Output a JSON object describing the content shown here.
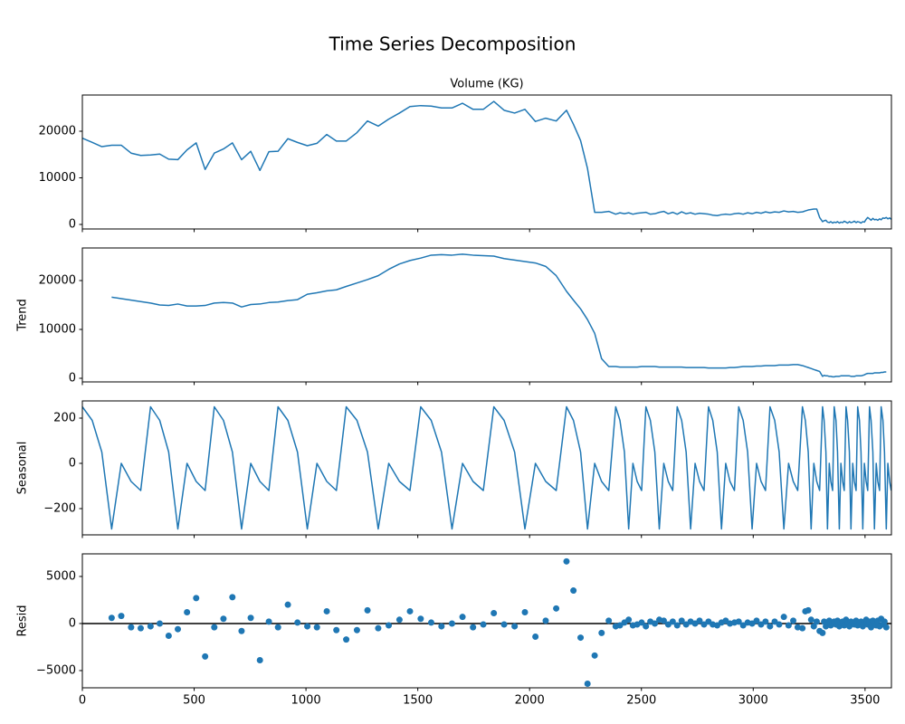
{
  "title": "Time Series Decomposition",
  "chart_data": [
    {
      "type": "line",
      "title": "Volume (KG)",
      "color": "#1f77b4",
      "xlim": [
        0,
        3618
      ],
      "xticks": [
        0,
        500,
        1000,
        1500,
        2000,
        2500,
        3000,
        3500
      ],
      "show_xtick_labels": false,
      "ylim": [
        -970,
        27770
      ],
      "yticks": [
        0,
        10000,
        20000
      ],
      "x": [
        0,
        44,
        87,
        131,
        174,
        218,
        261,
        305,
        346,
        386,
        427,
        468,
        509,
        549,
        590,
        631,
        671,
        712,
        753,
        794,
        834,
        875,
        919,
        962,
        1006,
        1049,
        1093,
        1136,
        1180,
        1228,
        1275,
        1323,
        1370,
        1418,
        1465,
        1513,
        1560,
        1606,
        1653,
        1700,
        1747,
        1793,
        1840,
        1886,
        1933,
        1979,
        2026,
        2072,
        2119,
        2165,
        2196,
        2228,
        2259,
        2291,
        2322,
        2354,
        2385,
        2404,
        2424,
        2443,
        2462,
        2481,
        2501,
        2520,
        2540,
        2560,
        2580,
        2600,
        2620,
        2640,
        2660,
        2680,
        2700,
        2720,
        2740,
        2760,
        2780,
        2800,
        2819,
        2839,
        2858,
        2877,
        2896,
        2916,
        2935,
        2955,
        2975,
        2995,
        3015,
        3035,
        3055,
        3075,
        3096,
        3116,
        3137,
        3158,
        3179,
        3199,
        3220,
        3233,
        3246,
        3259,
        3271,
        3284,
        3297,
        3310,
        3317,
        3325,
        3332,
        3340,
        3347,
        3355,
        3362,
        3370,
        3377,
        3385,
        3392,
        3400,
        3407,
        3415,
        3422,
        3430,
        3437,
        3445,
        3452,
        3460,
        3467,
        3475,
        3482,
        3490,
        3497,
        3505,
        3512,
        3520,
        3527,
        3535,
        3542,
        3550,
        3557,
        3565,
        3572,
        3580,
        3587,
        3595,
        3602,
        3610,
        3617
      ],
      "values": [
        18500,
        17600,
        16700,
        17000,
        17000,
        15300,
        14800,
        14900,
        15100,
        14000,
        13900,
        16000,
        17500,
        11800,
        15300,
        16200,
        17500,
        13900,
        15700,
        11600,
        15600,
        15700,
        18400,
        17600,
        16900,
        17400,
        19300,
        17900,
        17900,
        19700,
        22200,
        21100,
        22600,
        23900,
        25300,
        25500,
        25400,
        25000,
        25000,
        26000,
        24700,
        24700,
        26400,
        24500,
        23900,
        24700,
        22100,
        22800,
        22200,
        24500,
        21500,
        18000,
        12000,
        2600,
        2600,
        2800,
        2200,
        2500,
        2300,
        2500,
        2200,
        2400,
        2500,
        2600,
        2200,
        2300,
        2600,
        2800,
        2300,
        2600,
        2200,
        2700,
        2300,
        2500,
        2200,
        2400,
        2300,
        2200,
        2000,
        1900,
        2100,
        2200,
        2100,
        2300,
        2400,
        2200,
        2500,
        2300,
        2600,
        2400,
        2700,
        2500,
        2700,
        2600,
        2900,
        2700,
        2800,
        2600,
        2700,
        2900,
        3100,
        3200,
        3300,
        3300,
        1500,
        600,
        800,
        900,
        500,
        400,
        600,
        300,
        500,
        400,
        600,
        300,
        500,
        400,
        700,
        500,
        300,
        600,
        400,
        500,
        700,
        400,
        600,
        500,
        300,
        600,
        500,
        1100,
        1500,
        1200,
        900,
        1300,
        1000,
        1100,
        900,
        1200,
        1000,
        1400,
        1300,
        1500,
        1200,
        1400,
        1100
      ]
    },
    {
      "type": "line",
      "ylabel": "Trend",
      "color": "#1f77b4",
      "xlim": [
        0,
        3618
      ],
      "xticks": [
        0,
        500,
        1000,
        1500,
        2000,
        2500,
        3000,
        3500
      ],
      "show_xtick_labels": false,
      "ylim": [
        -740,
        26670
      ],
      "yticks": [
        0,
        10000,
        20000
      ],
      "x": [
        0,
        44,
        87,
        131,
        174,
        218,
        261,
        305,
        346,
        386,
        427,
        468,
        509,
        549,
        590,
        631,
        671,
        712,
        753,
        794,
        834,
        875,
        919,
        962,
        1006,
        1049,
        1093,
        1136,
        1180,
        1228,
        1275,
        1323,
        1370,
        1418,
        1465,
        1513,
        1560,
        1606,
        1653,
        1700,
        1747,
        1793,
        1840,
        1886,
        1933,
        1979,
        2026,
        2072,
        2119,
        2165,
        2196,
        2228,
        2259,
        2291,
        2322,
        2354,
        2385,
        2404,
        2424,
        2443,
        2462,
        2481,
        2501,
        2520,
        2540,
        2560,
        2580,
        2600,
        2620,
        2640,
        2660,
        2680,
        2700,
        2720,
        2740,
        2760,
        2780,
        2800,
        2819,
        2839,
        2858,
        2877,
        2896,
        2916,
        2935,
        2955,
        2975,
        2995,
        3015,
        3035,
        3055,
        3075,
        3096,
        3116,
        3137,
        3158,
        3179,
        3199,
        3220,
        3233,
        3246,
        3259,
        3271,
        3284,
        3297,
        3310,
        3317,
        3325,
        3332,
        3340,
        3347,
        3355,
        3362,
        3370,
        3377,
        3385,
        3392,
        3400,
        3407,
        3415,
        3422,
        3430,
        3437,
        3445,
        3452,
        3460,
        3467,
        3475,
        3482,
        3490,
        3497,
        3505,
        3512,
        3520,
        3527,
        3535,
        3542,
        3550,
        3557,
        3565,
        3572,
        3580,
        3587,
        3595,
        3602,
        3610,
        3617
      ],
      "values": [
        null,
        null,
        null,
        16600,
        16300,
        16000,
        15700,
        15400,
        15000,
        14900,
        15200,
        14800,
        14800,
        14900,
        15400,
        15500,
        15400,
        14600,
        15100,
        15200,
        15500,
        15600,
        15900,
        16100,
        17200,
        17500,
        17900,
        18100,
        18800,
        19500,
        20200,
        21000,
        22300,
        23400,
        24100,
        24600,
        25200,
        25300,
        25200,
        25400,
        25200,
        25100,
        25000,
        24500,
        24200,
        23900,
        23600,
        22900,
        21000,
        17800,
        16000,
        14200,
        12000,
        9200,
        4000,
        2400,
        2400,
        2300,
        2300,
        2300,
        2300,
        2300,
        2400,
        2400,
        2400,
        2400,
        2300,
        2300,
        2300,
        2300,
        2300,
        2300,
        2200,
        2200,
        2200,
        2200,
        2200,
        2100,
        2100,
        2100,
        2100,
        2100,
        2200,
        2200,
        2300,
        2400,
        2400,
        2400,
        2500,
        2500,
        2600,
        2600,
        2600,
        2700,
        2700,
        2700,
        2800,
        2800,
        2600,
        2400,
        2200,
        2000,
        1800,
        1600,
        1400,
        400,
        600,
        500,
        500,
        400,
        400,
        300,
        300,
        400,
        400,
        400,
        500,
        500,
        500,
        500,
        500,
        500,
        400,
        400,
        400,
        500,
        500,
        500,
        500,
        600,
        700,
        900,
        1000,
        1000,
        1000,
        1000,
        1100,
        1100,
        1100,
        1100,
        1200,
        1200,
        1300,
        1300,
        null,
        null,
        null
      ]
    },
    {
      "type": "line",
      "ylabel": "Seasonal",
      "color": "#1f77b4",
      "xlim": [
        0,
        3618
      ],
      "xticks": [
        0,
        500,
        1000,
        1500,
        2000,
        2500,
        3000,
        3500
      ],
      "show_xtick_labels": false,
      "ylim": [
        -316,
        276
      ],
      "yticks": [
        {
          "value": -200,
          "label": "−200"
        },
        0,
        200
      ],
      "x": [
        0,
        44,
        87,
        131,
        174,
        218,
        261,
        305,
        346,
        386,
        427,
        468,
        509,
        549,
        590,
        631,
        671,
        712,
        753,
        794,
        834,
        875,
        919,
        962,
        1006,
        1049,
        1093,
        1136,
        1180,
        1228,
        1275,
        1323,
        1370,
        1418,
        1465,
        1513,
        1560,
        1606,
        1653,
        1700,
        1747,
        1793,
        1840,
        1886,
        1933,
        1979,
        2026,
        2072,
        2119,
        2165,
        2196,
        2228,
        2259,
        2291,
        2322,
        2354,
        2385,
        2404,
        2424,
        2443,
        2462,
        2481,
        2501,
        2520,
        2540,
        2560,
        2580,
        2600,
        2620,
        2640,
        2660,
        2680,
        2700,
        2720,
        2740,
        2760,
        2780,
        2800,
        2819,
        2839,
        2858,
        2877,
        2896,
        2916,
        2935,
        2955,
        2975,
        2995,
        3015,
        3035,
        3055,
        3075,
        3096,
        3116,
        3137,
        3158,
        3179,
        3199,
        3220,
        3233,
        3246,
        3259,
        3271,
        3284,
        3297,
        3310,
        3317,
        3325,
        3332,
        3340,
        3347,
        3355,
        3362,
        3370,
        3377,
        3385,
        3392,
        3400,
        3407,
        3415,
        3422,
        3430,
        3437,
        3445,
        3452,
        3460,
        3467,
        3475,
        3482,
        3490,
        3497,
        3505,
        3512,
        3520,
        3527,
        3535,
        3542,
        3550,
        3557,
        3565,
        3572,
        3580,
        3587,
        3595,
        3602,
        3610,
        3617
      ],
      "values": [
        250,
        190,
        50,
        -290,
        0,
        -80,
        -120,
        250,
        190,
        50,
        -290,
        0,
        -80,
        -120,
        250,
        190,
        50,
        -290,
        0,
        -80,
        -120,
        250,
        190,
        50,
        -290,
        0,
        -80,
        -120,
        250,
        190,
        50,
        -290,
        0,
        -80,
        -120,
        250,
        190,
        50,
        -290,
        0,
        -80,
        -120,
        250,
        190,
        50,
        -290,
        0,
        -80,
        -120,
        250,
        190,
        50,
        -290,
        0,
        -80,
        -120,
        250,
        190,
        50,
        -290,
        0,
        -80,
        -120,
        250,
        190,
        50,
        -290,
        0,
        -80,
        -120,
        250,
        190,
        50,
        -290,
        0,
        -80,
        -120,
        250,
        190,
        50,
        -290,
        0,
        -80,
        -120,
        250,
        190,
        50,
        -290,
        0,
        -80,
        -120,
        250,
        190,
        50,
        -290,
        0,
        -80,
        -120,
        250,
        190,
        50,
        -290,
        0,
        -80,
        -120,
        250,
        190,
        50,
        -290,
        0,
        -80,
        -120,
        250,
        190,
        50,
        -290,
        0,
        -80,
        -120,
        250,
        190,
        50,
        -290,
        0,
        -80,
        -120,
        250,
        190,
        50,
        -290,
        0,
        -80,
        -120,
        250,
        190,
        50,
        -290,
        0,
        -80,
        -120,
        250,
        190,
        50,
        -290,
        0,
        -80,
        -120
      ]
    },
    {
      "type": "scatter",
      "ylabel": "Resid",
      "color": "#1f77b4",
      "axhline": 0,
      "xlim": [
        0,
        3618
      ],
      "xticks": [
        0,
        500,
        1000,
        1500,
        2000,
        2500,
        3000,
        3500
      ],
      "show_xtick_labels": true,
      "ylim": [
        -6830,
        7400
      ],
      "yticks": [
        {
          "value": -5000,
          "label": "−5000"
        },
        0,
        5000
      ],
      "x": [
        0,
        44,
        87,
        131,
        174,
        218,
        261,
        305,
        346,
        386,
        427,
        468,
        509,
        549,
        590,
        631,
        671,
        712,
        753,
        794,
        834,
        875,
        919,
        962,
        1006,
        1049,
        1093,
        1136,
        1180,
        1228,
        1275,
        1323,
        1370,
        1418,
        1465,
        1513,
        1560,
        1606,
        1653,
        1700,
        1747,
        1793,
        1840,
        1886,
        1933,
        1979,
        2026,
        2072,
        2119,
        2165,
        2196,
        2228,
        2259,
        2291,
        2322,
        2354,
        2385,
        2404,
        2424,
        2443,
        2462,
        2481,
        2501,
        2520,
        2540,
        2560,
        2580,
        2600,
        2620,
        2640,
        2660,
        2680,
        2700,
        2720,
        2740,
        2760,
        2780,
        2800,
        2819,
        2839,
        2858,
        2877,
        2896,
        2916,
        2935,
        2955,
        2975,
        2995,
        3015,
        3035,
        3055,
        3075,
        3096,
        3116,
        3137,
        3158,
        3179,
        3199,
        3220,
        3233,
        3246,
        3259,
        3271,
        3284,
        3297,
        3310,
        3317,
        3325,
        3332,
        3340,
        3347,
        3355,
        3362,
        3370,
        3377,
        3385,
        3392,
        3400,
        3407,
        3415,
        3422,
        3430,
        3437,
        3445,
        3452,
        3460,
        3467,
        3475,
        3482,
        3490,
        3497,
        3505,
        3512,
        3520,
        3527,
        3535,
        3542,
        3550,
        3557,
        3565,
        3572,
        3580,
        3587,
        3595,
        3602,
        3610,
        3617
      ],
      "values": [
        null,
        null,
        null,
        600,
        800,
        -400,
        -500,
        -300,
        0,
        -1300,
        -600,
        1200,
        2700,
        -3500,
        -400,
        500,
        2800,
        -800,
        600,
        -3900,
        200,
        -400,
        2000,
        100,
        -300,
        -400,
        1300,
        -700,
        -1700,
        -700,
        1400,
        -500,
        -200,
        400,
        1300,
        500,
        100,
        -300,
        0,
        700,
        -400,
        -100,
        1100,
        -100,
        -300,
        1200,
        -1400,
        300,
        1600,
        6600,
        3500,
        -1500,
        -6400,
        -3400,
        -1000,
        300,
        -300,
        -200,
        100,
        400,
        -200,
        -100,
        100,
        -300,
        200,
        0,
        400,
        300,
        -100,
        200,
        -200,
        300,
        -100,
        200,
        0,
        300,
        -100,
        200,
        -100,
        -200,
        100,
        300,
        0,
        100,
        200,
        -200,
        100,
        0,
        300,
        -100,
        200,
        -300,
        200,
        -100,
        700,
        -200,
        300,
        -400,
        -500,
        1300,
        1400,
        400,
        -300,
        200,
        -800,
        -1000,
        200,
        -300,
        100,
        300,
        -200,
        0,
        200,
        -100,
        300,
        -300,
        100,
        200,
        -200,
        400,
        0,
        -300,
        200,
        100,
        -100,
        300,
        -200,
        0,
        200,
        -300,
        100,
        400,
        -100,
        200,
        -400,
        300,
        0,
        -200,
        300,
        -300,
        500,
        -100,
        200,
        -400,
        null,
        null,
        null
      ]
    }
  ]
}
